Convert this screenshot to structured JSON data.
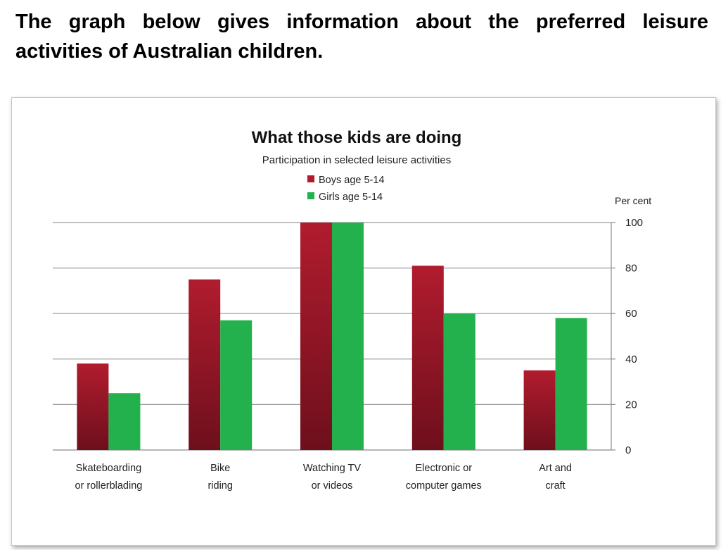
{
  "question": {
    "text": "The graph below gives information about the preferred leisure activities of Australian children."
  },
  "chart_data": {
    "type": "bar",
    "title": "What those kids are doing",
    "subtitle": "Participation in selected leisure activities",
    "ylabel": "Per cent",
    "xlabel": "",
    "ylim": [
      0,
      100
    ],
    "yticks": [
      0,
      20,
      40,
      60,
      80,
      100
    ],
    "grid": true,
    "y_axis_side": "right",
    "legend_position": "top-center",
    "categories": [
      [
        "Skateboarding",
        "or rollerblading"
      ],
      [
        "Bike",
        "riding"
      ],
      [
        "Watching TV",
        "or videos"
      ],
      [
        "Electronic or",
        "computer games"
      ],
      [
        "Art and",
        "craft"
      ]
    ],
    "series": [
      {
        "name": "Boys age 5-14",
        "color": "#b01c2e",
        "color_dark": "#6e0f1c",
        "values": [
          38,
          75,
          100,
          81,
          35
        ]
      },
      {
        "name": "Girls age 5-14",
        "color": "#22b14c",
        "values": [
          25,
          57,
          100,
          60,
          58
        ]
      }
    ]
  }
}
